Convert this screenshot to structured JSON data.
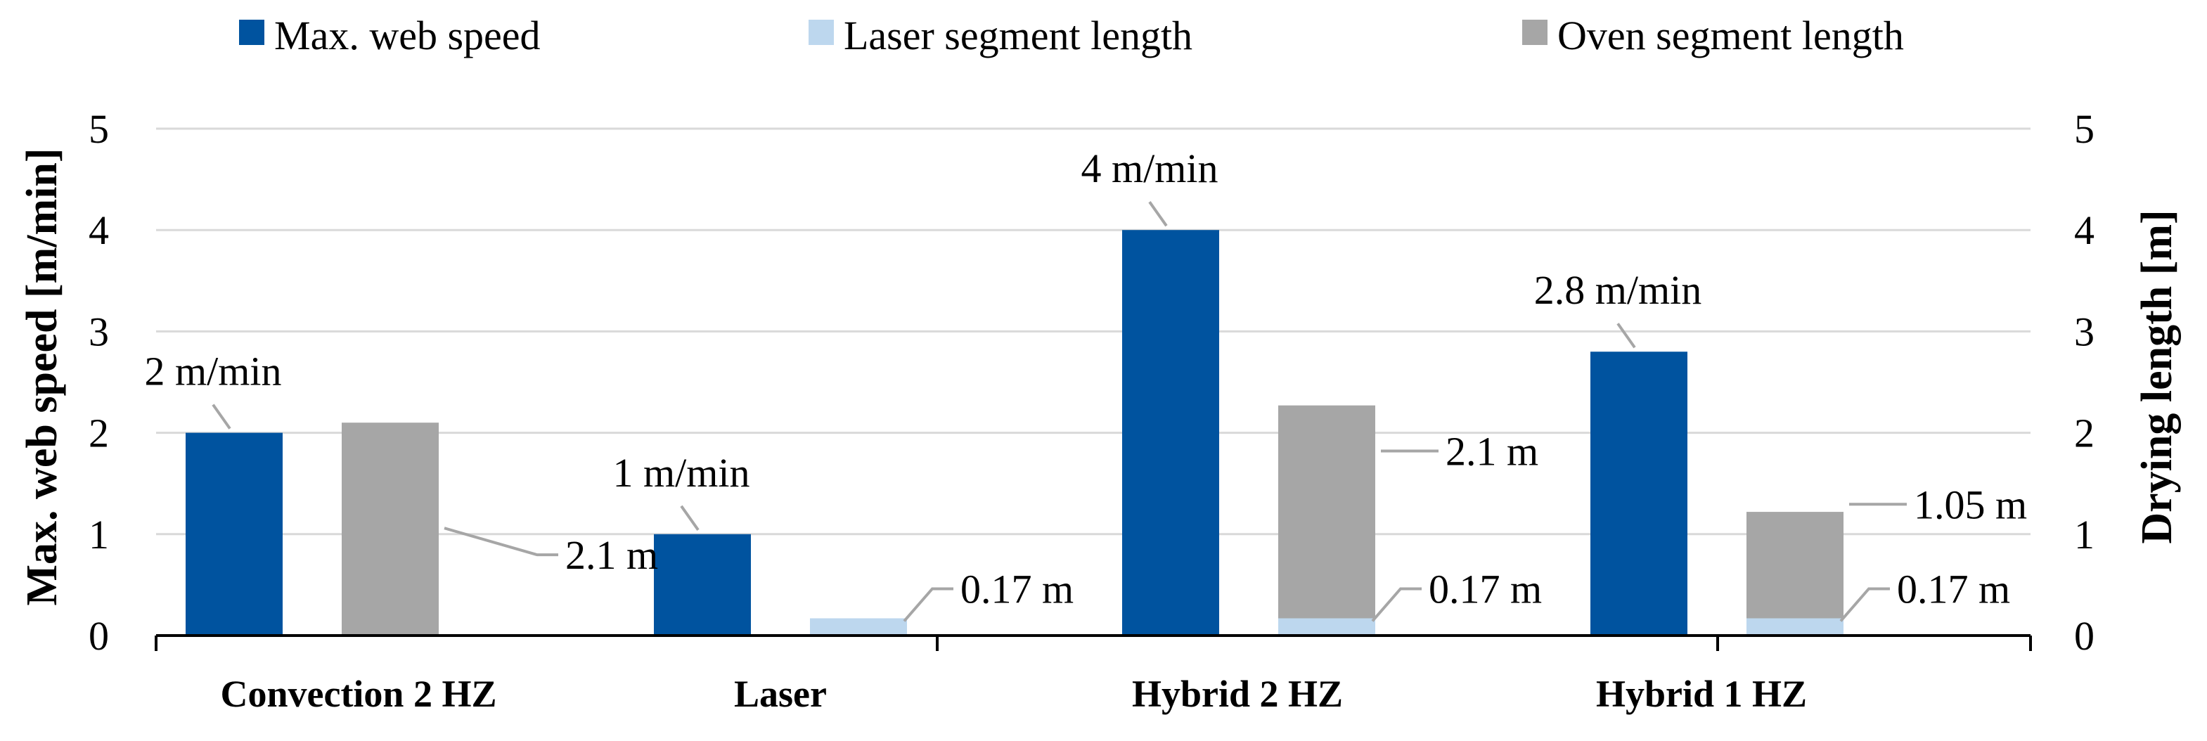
{
  "chart_data": {
    "type": "bar",
    "categories": [
      "Convection 2 HZ",
      "Laser",
      "Hybrid 2 HZ",
      "Hybrid 1 HZ"
    ],
    "series": [
      {
        "name": "Max. web speed",
        "axis": "left",
        "color": "#00539f",
        "values": [
          2,
          1,
          4,
          2.8
        ]
      },
      {
        "name": "Laser segment length",
        "axis": "right",
        "color": "#bdd7ee",
        "values": [
          0,
          0.17,
          0.17,
          0.17
        ]
      },
      {
        "name": "Oven segment length",
        "axis": "right",
        "color": "#a6a6a6",
        "values": [
          2.1,
          0,
          2.1,
          1.05
        ]
      }
    ],
    "stacked_series": [
      "Laser segment length",
      "Oven segment length"
    ],
    "data_labels": {
      "speed": [
        "2 m/min",
        "1 m/min",
        "4 m/min",
        "2.8 m/min"
      ],
      "laser": [
        "",
        "0.17 m",
        "0.17 m",
        "0.17 m"
      ],
      "oven": [
        "2.1 m",
        "",
        "2.1 m",
        "1.05 m"
      ]
    },
    "ylabel": "Max. web speed [m/min]",
    "y2label": "Drying length [m]",
    "ylim": [
      0,
      5
    ],
    "y2lim": [
      0,
      5
    ],
    "yticks": [
      "0",
      "1",
      "2",
      "3",
      "4",
      "5"
    ],
    "y2ticks": [
      "0",
      "1",
      "2",
      "3",
      "4",
      "5"
    ],
    "grid": true,
    "legend_position": "top"
  }
}
